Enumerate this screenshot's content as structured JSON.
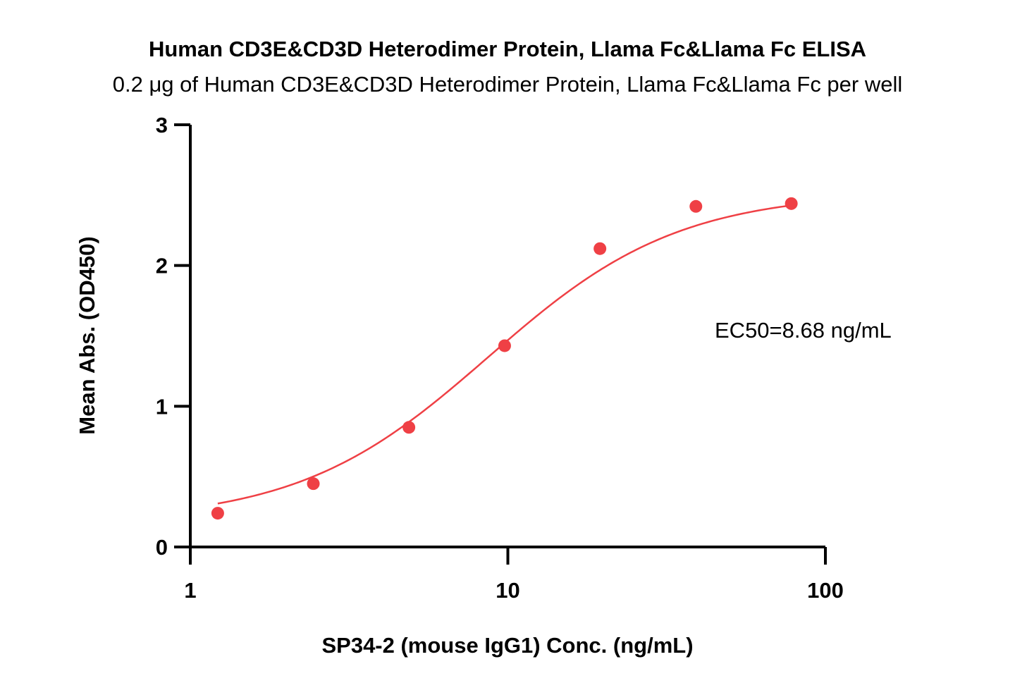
{
  "chart_data": {
    "type": "scatter",
    "title": "Human CD3E&CD3D Heterodimer Protein, Llama Fc&Llama Fc ELISA",
    "subtitle": "0.2 μg of Human CD3E&CD3D Heterodimer Protein, Llama Fc&Llama Fc per well",
    "xlabel": "SP34-2 (mouse IgG1) Conc. (ng/mL)",
    "ylabel": "Mean Abs. (OD450)",
    "xscale": "log",
    "xlim": [
      1,
      100
    ],
    "ylim": [
      0,
      3
    ],
    "x_ticks": [
      1,
      10,
      100
    ],
    "x_tick_labels": [
      "1",
      "10",
      "100"
    ],
    "y_ticks": [
      0,
      1,
      2,
      3
    ],
    "y_tick_labels": [
      "0",
      "1",
      "2",
      "3"
    ],
    "grid": false,
    "series": [
      {
        "name": "Mean Abs.",
        "x": [
          1.22,
          2.44,
          4.88,
          9.77,
          19.5,
          39.1,
          78.1
        ],
        "y": [
          0.24,
          0.45,
          0.85,
          1.43,
          2.12,
          2.42,
          2.44
        ],
        "color": "#ef4045",
        "fit": {
          "model": "4PL",
          "bottom": 0.18,
          "top": 2.52,
          "ec50": 8.68,
          "hill": 1.45,
          "x_range": [
            1.22,
            78.1
          ]
        }
      }
    ],
    "annotations": [
      {
        "text": "EC50=8.68 ng/mL",
        "position": "right-middle"
      }
    ]
  }
}
